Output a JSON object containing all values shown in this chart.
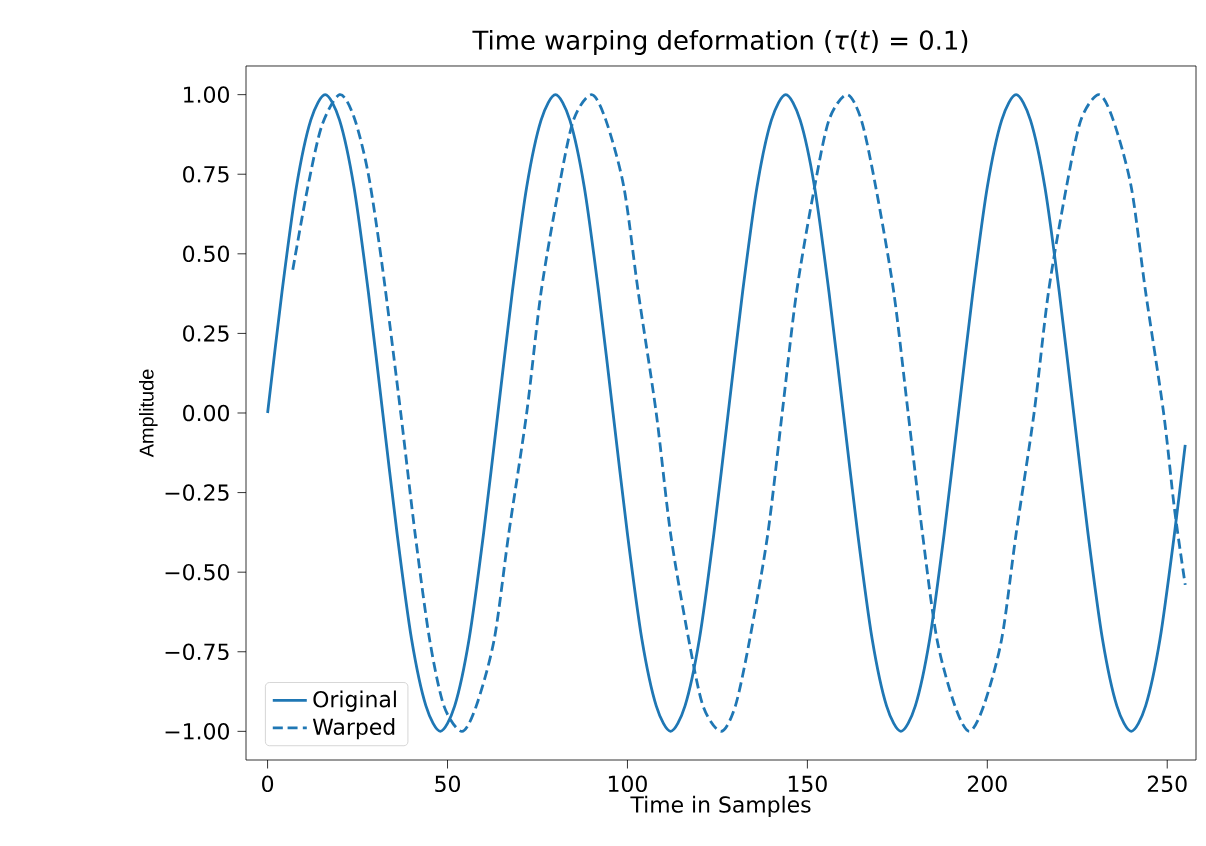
{
  "chart_data": {
    "type": "line",
    "title": "Time warping deformation (*τ*(*t*) = 0.1)",
    "xlabel": "Time in Samples",
    "ylabel": "Amplitude",
    "xlim": [
      -6,
      258
    ],
    "ylim": [
      -1.09,
      1.09
    ],
    "xticks": [
      0,
      50,
      100,
      150,
      200,
      250
    ],
    "yticks": [
      {
        "value": -1,
        "label": "−1.00"
      },
      {
        "value": -0.75,
        "label": "−0.75"
      },
      {
        "value": -0.5,
        "label": "−0.50"
      },
      {
        "value": -0.25,
        "label": "−0.25"
      },
      {
        "value": 0,
        "label": "0.00"
      },
      {
        "value": 0.25,
        "label": "0.25"
      },
      {
        "value": 0.5,
        "label": "0.50"
      },
      {
        "value": 0.75,
        "label": "0.75"
      },
      {
        "value": 1,
        "label": "1.00"
      }
    ],
    "legend": "bottom left",
    "grid": false,
    "series": [
      {
        "name": "Original",
        "color": "#1f77b4",
        "line_style": "solid",
        "x": [
          0,
          4,
          8,
          12,
          16,
          20,
          24,
          28,
          32,
          36,
          40,
          44,
          48,
          52,
          56,
          60,
          64,
          68,
          72,
          76,
          80,
          84,
          88,
          92,
          96,
          100,
          104,
          108,
          112,
          116,
          120,
          124,
          128,
          132,
          136,
          140,
          144,
          148,
          152,
          156,
          160,
          164,
          168,
          172,
          176,
          180,
          184,
          188,
          192,
          196,
          200,
          204,
          208,
          212,
          216,
          220,
          224,
          228,
          232,
          236,
          240,
          244,
          248,
          252,
          255
        ],
        "values": [
          0,
          0.38,
          0.71,
          0.92,
          1,
          0.92,
          0.71,
          0.38,
          0,
          -0.38,
          -0.71,
          -0.92,
          -1,
          -0.92,
          -0.71,
          -0.38,
          0,
          0.38,
          0.71,
          0.92,
          1,
          0.92,
          0.71,
          0.38,
          0,
          -0.38,
          -0.71,
          -0.92,
          -1,
          -0.92,
          -0.71,
          -0.38,
          0,
          0.38,
          0.71,
          0.92,
          1,
          0.92,
          0.71,
          0.38,
          0,
          -0.38,
          -0.71,
          -0.92,
          -1,
          -0.92,
          -0.71,
          -0.38,
          0,
          0.38,
          0.71,
          0.92,
          1,
          0.92,
          0.71,
          0.38,
          0,
          -0.38,
          -0.71,
          -0.92,
          -1,
          -0.92,
          -0.71,
          -0.38,
          -0.1
        ]
      },
      {
        "name": "Warped",
        "color": "#1f77b4",
        "line_style": "dashed",
        "x": [
          7,
          11,
          15,
          20,
          24,
          28,
          32,
          37,
          41,
          45,
          49,
          54,
          58,
          63,
          67,
          72,
          76,
          81,
          85,
          90,
          94,
          99,
          103,
          108,
          112,
          117,
          121,
          126,
          130,
          134,
          139,
          143,
          147,
          152,
          156,
          161,
          165,
          169,
          174,
          178,
          182,
          186,
          191,
          195,
          199,
          204,
          208,
          213,
          217,
          222,
          226,
          231,
          235,
          240,
          244,
          249,
          252,
          255
        ],
        "values": [
          0.45,
          0.7,
          0.9,
          1,
          0.93,
          0.75,
          0.45,
          0,
          -0.38,
          -0.71,
          -0.92,
          -1,
          -0.92,
          -0.71,
          -0.38,
          0,
          0.38,
          0.71,
          0.92,
          1,
          0.92,
          0.71,
          0.38,
          0,
          -0.38,
          -0.71,
          -0.92,
          -1,
          -0.92,
          -0.71,
          -0.38,
          0,
          0.38,
          0.71,
          0.92,
          1,
          0.92,
          0.71,
          0.38,
          0,
          -0.38,
          -0.71,
          -0.92,
          -1,
          -0.92,
          -0.71,
          -0.38,
          0,
          0.38,
          0.71,
          0.92,
          1,
          0.92,
          0.71,
          0.38,
          0,
          -0.3,
          -0.54
        ]
      }
    ]
  }
}
